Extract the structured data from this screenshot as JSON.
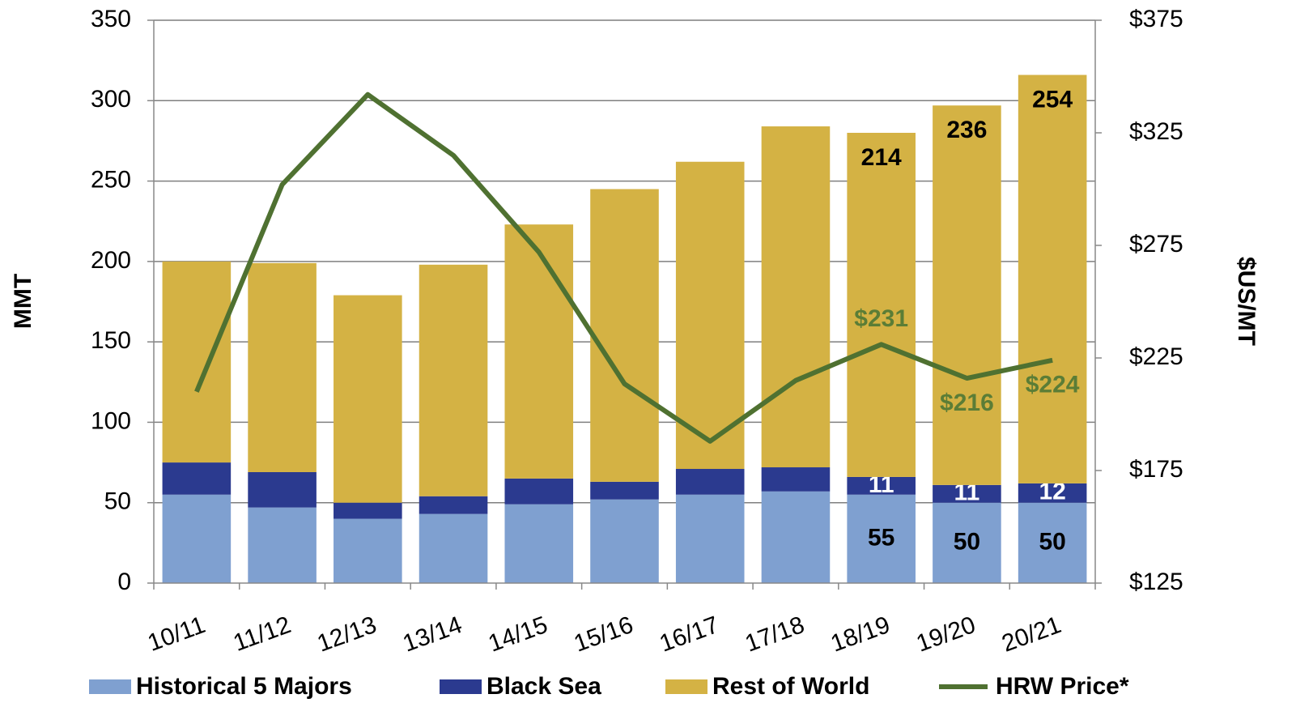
{
  "chart_data": {
    "type": "bar_line",
    "ylabel": "MMT",
    "y2label": "$US/MT",
    "categories": [
      "10/11",
      "11/12",
      "12/13",
      "13/14",
      "14/15",
      "15/16",
      "16/17",
      "17/18",
      "18/19",
      "19/20",
      "20/21"
    ],
    "ylim": [
      0,
      350
    ],
    "yticks": [
      0,
      50,
      100,
      150,
      200,
      250,
      300,
      350
    ],
    "y2lim": [
      125,
      375
    ],
    "y2ticks": [
      {
        "value": 125,
        "label": "$125"
      },
      {
        "value": 175,
        "label": "$175"
      },
      {
        "value": 225,
        "label": "$225"
      },
      {
        "value": 275,
        "label": "$275"
      },
      {
        "value": 325,
        "label": "$325"
      },
      {
        "value": 375,
        "label": "$375"
      }
    ],
    "grid": true,
    "legend": "bottom",
    "series": [
      {
        "name": "Historical 5 Majors",
        "color": "#7fa0d0",
        "kind": "bar",
        "values": [
          55,
          47,
          40,
          43,
          49,
          52,
          55,
          57,
          55,
          50,
          50
        ],
        "value_labels": [
          null,
          null,
          null,
          null,
          null,
          null,
          null,
          null,
          "55",
          "50",
          "50"
        ],
        "label_color": "#000000"
      },
      {
        "name": "Black Sea",
        "color": "#2b3a8f",
        "kind": "bar",
        "values": [
          20,
          22,
          10,
          11,
          16,
          11,
          16,
          15,
          11,
          11,
          12
        ],
        "value_labels": [
          null,
          null,
          null,
          null,
          null,
          null,
          null,
          null,
          "11",
          "11",
          "12"
        ],
        "label_color": "#ffffff"
      },
      {
        "name": "Rest of World",
        "color": "#d4b244",
        "kind": "bar",
        "values": [
          125,
          130,
          129,
          144,
          158,
          182,
          191,
          212,
          214,
          236,
          254
        ],
        "value_labels": [
          null,
          null,
          null,
          null,
          null,
          null,
          null,
          null,
          "214",
          "236",
          "254"
        ],
        "label_color": "#000000"
      },
      {
        "name": "HRW Price*",
        "color": "#4f7131",
        "kind": "line",
        "axis": "y2",
        "values": [
          210,
          302,
          342,
          315,
          272,
          213.5,
          188,
          215,
          231,
          216,
          224
        ],
        "value_labels": [
          null,
          null,
          null,
          null,
          null,
          null,
          null,
          null,
          "$231",
          "$216",
          "$224"
        ],
        "label_color": "#5b7d36"
      }
    ]
  }
}
